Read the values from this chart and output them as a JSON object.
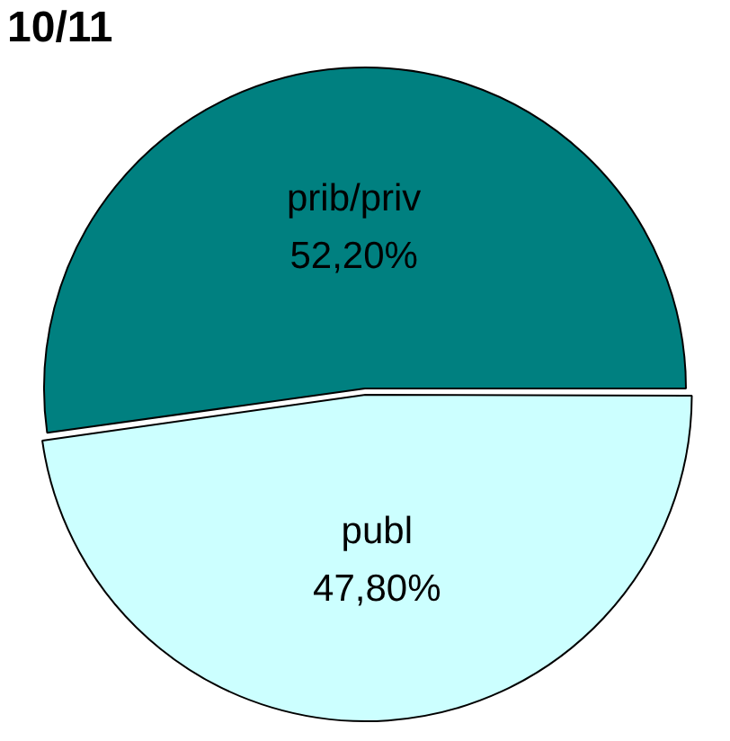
{
  "chart_data": {
    "type": "pie",
    "title": "10/11",
    "categories": [
      "prib/priv",
      "publ"
    ],
    "values": [
      52.2,
      47.8
    ],
    "value_labels": [
      "52,20%",
      "47,80%"
    ],
    "colors": [
      "#008080",
      "#ccffff"
    ],
    "legend": false
  }
}
